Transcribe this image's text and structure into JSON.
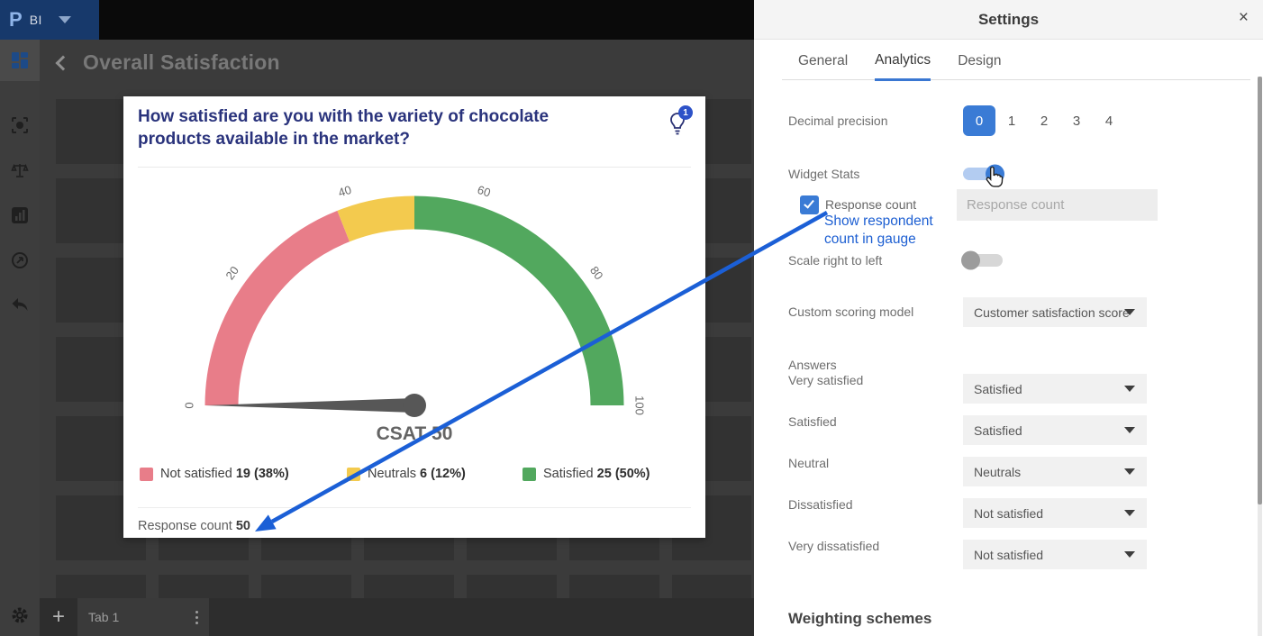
{
  "app": {
    "logo_mark": "P",
    "logo_text": "BI"
  },
  "sidebar": {
    "items": [
      {
        "icon": "dashboard-icon",
        "active": true
      },
      {
        "icon": "scan-icon",
        "active": false
      },
      {
        "icon": "scale-icon",
        "active": false
      },
      {
        "icon": "bar-chart-icon",
        "active": false
      },
      {
        "icon": "export-icon",
        "active": false
      },
      {
        "icon": "reply-icon",
        "active": false
      }
    ],
    "bottom_icon": "gear-icon"
  },
  "header": {
    "title": "Overall Satisfaction"
  },
  "tab_bar": {
    "add_label": "+",
    "tab_label": "Tab 1"
  },
  "widget": {
    "title": "How satisfied are you with the variety of chocolate products available in the market?",
    "badge_count": "1",
    "legend": [
      {
        "label": "Not satisfied",
        "value": "19 (38%)",
        "color": "#e87d89"
      },
      {
        "label": "Neutrals",
        "value": "6 (12%)",
        "color": "#f3ca4e"
      },
      {
        "label": "Satisfied",
        "value": "25 (50%)",
        "color": "#52a85e"
      }
    ],
    "footer_label": "Response count",
    "footer_value": "50"
  },
  "chart_data": {
    "type": "gauge",
    "title": "How satisfied are you with the variety of chocolate products available in the market?",
    "min": 0,
    "max": 100,
    "tick_labels": [
      "0",
      "20",
      "40",
      "60",
      "80",
      "100"
    ],
    "value": 50,
    "value_label": "CSAT 50",
    "needle_position": 0,
    "segments": [
      {
        "label": "Not satisfied",
        "from": 0,
        "to": 38,
        "count": 19,
        "percent": 38,
        "color": "#e87d89"
      },
      {
        "label": "Neutrals",
        "from": 38,
        "to": 50,
        "count": 6,
        "percent": 12,
        "color": "#f3ca4e"
      },
      {
        "label": "Satisfied",
        "from": 50,
        "to": 100,
        "count": 25,
        "percent": 50,
        "color": "#52a85e"
      }
    ],
    "response_count": 50,
    "legend_position": "bottom",
    "grid": false
  },
  "settings": {
    "title": "Settings",
    "close_label": "×",
    "tabs": [
      {
        "label": "General"
      },
      {
        "label": "Analytics"
      },
      {
        "label": "Design"
      }
    ],
    "decimal_precision": {
      "label": "Decimal precision",
      "options": [
        "0",
        "1",
        "2",
        "3",
        "4"
      ],
      "selected": "0"
    },
    "widget_stats": {
      "label": "Widget Stats",
      "enabled": true
    },
    "response_count_option": {
      "label": "Response count",
      "checked": true,
      "placeholder": "Response count"
    },
    "scale_rtl": {
      "label": "Scale right to left",
      "enabled": false
    },
    "custom_scoring": {
      "label": "Custom scoring model",
      "value": "Customer satisfaction score"
    },
    "answers_heading": "Answers",
    "answers": [
      {
        "label": "Very satisfied",
        "value": "Satisfied"
      },
      {
        "label": "Satisfied",
        "value": "Satisfied"
      },
      {
        "label": "Neutral",
        "value": "Neutrals"
      },
      {
        "label": "Dissatisfied",
        "value": "Not satisfied"
      },
      {
        "label": "Very dissatisfied",
        "value": "Not satisfied"
      }
    ],
    "weighting_heading": "Weighting schemes"
  },
  "annotation": {
    "line1": "Show respondent",
    "line2": "count in gauge"
  },
  "colors": {
    "accent_blue": "#3a7bd5",
    "annotation_blue": "#1d5fd2",
    "title_navy": "#2a337c",
    "needle_gray": "#575757",
    "logo_navy": "#17396b"
  }
}
